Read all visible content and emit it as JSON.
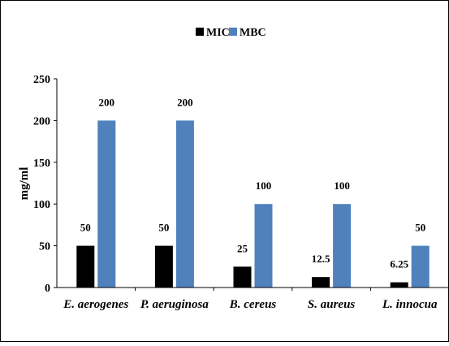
{
  "chart_data": {
    "type": "bar",
    "title": "",
    "xlabel": "",
    "ylabel": "mg/ml",
    "ylim": [
      0,
      250
    ],
    "yticks": [
      0,
      50,
      100,
      150,
      200,
      250
    ],
    "grid": false,
    "legend_position": "top-center",
    "categories": [
      "E. aerogenes",
      "P. aeruginosa",
      "B. cereus",
      "S. aureus",
      "L. innocua"
    ],
    "series": [
      {
        "name": "MIC",
        "color": "#000000",
        "values": [
          50,
          50,
          25,
          12.5,
          6.25
        ],
        "labels": [
          "50",
          "50",
          "25",
          "12.5",
          "6.25"
        ]
      },
      {
        "name": "MBC",
        "color": "#4f81bd",
        "values": [
          200,
          200,
          100,
          100,
          50
        ],
        "labels": [
          "200",
          "200",
          "100",
          "100",
          "50"
        ]
      }
    ]
  }
}
